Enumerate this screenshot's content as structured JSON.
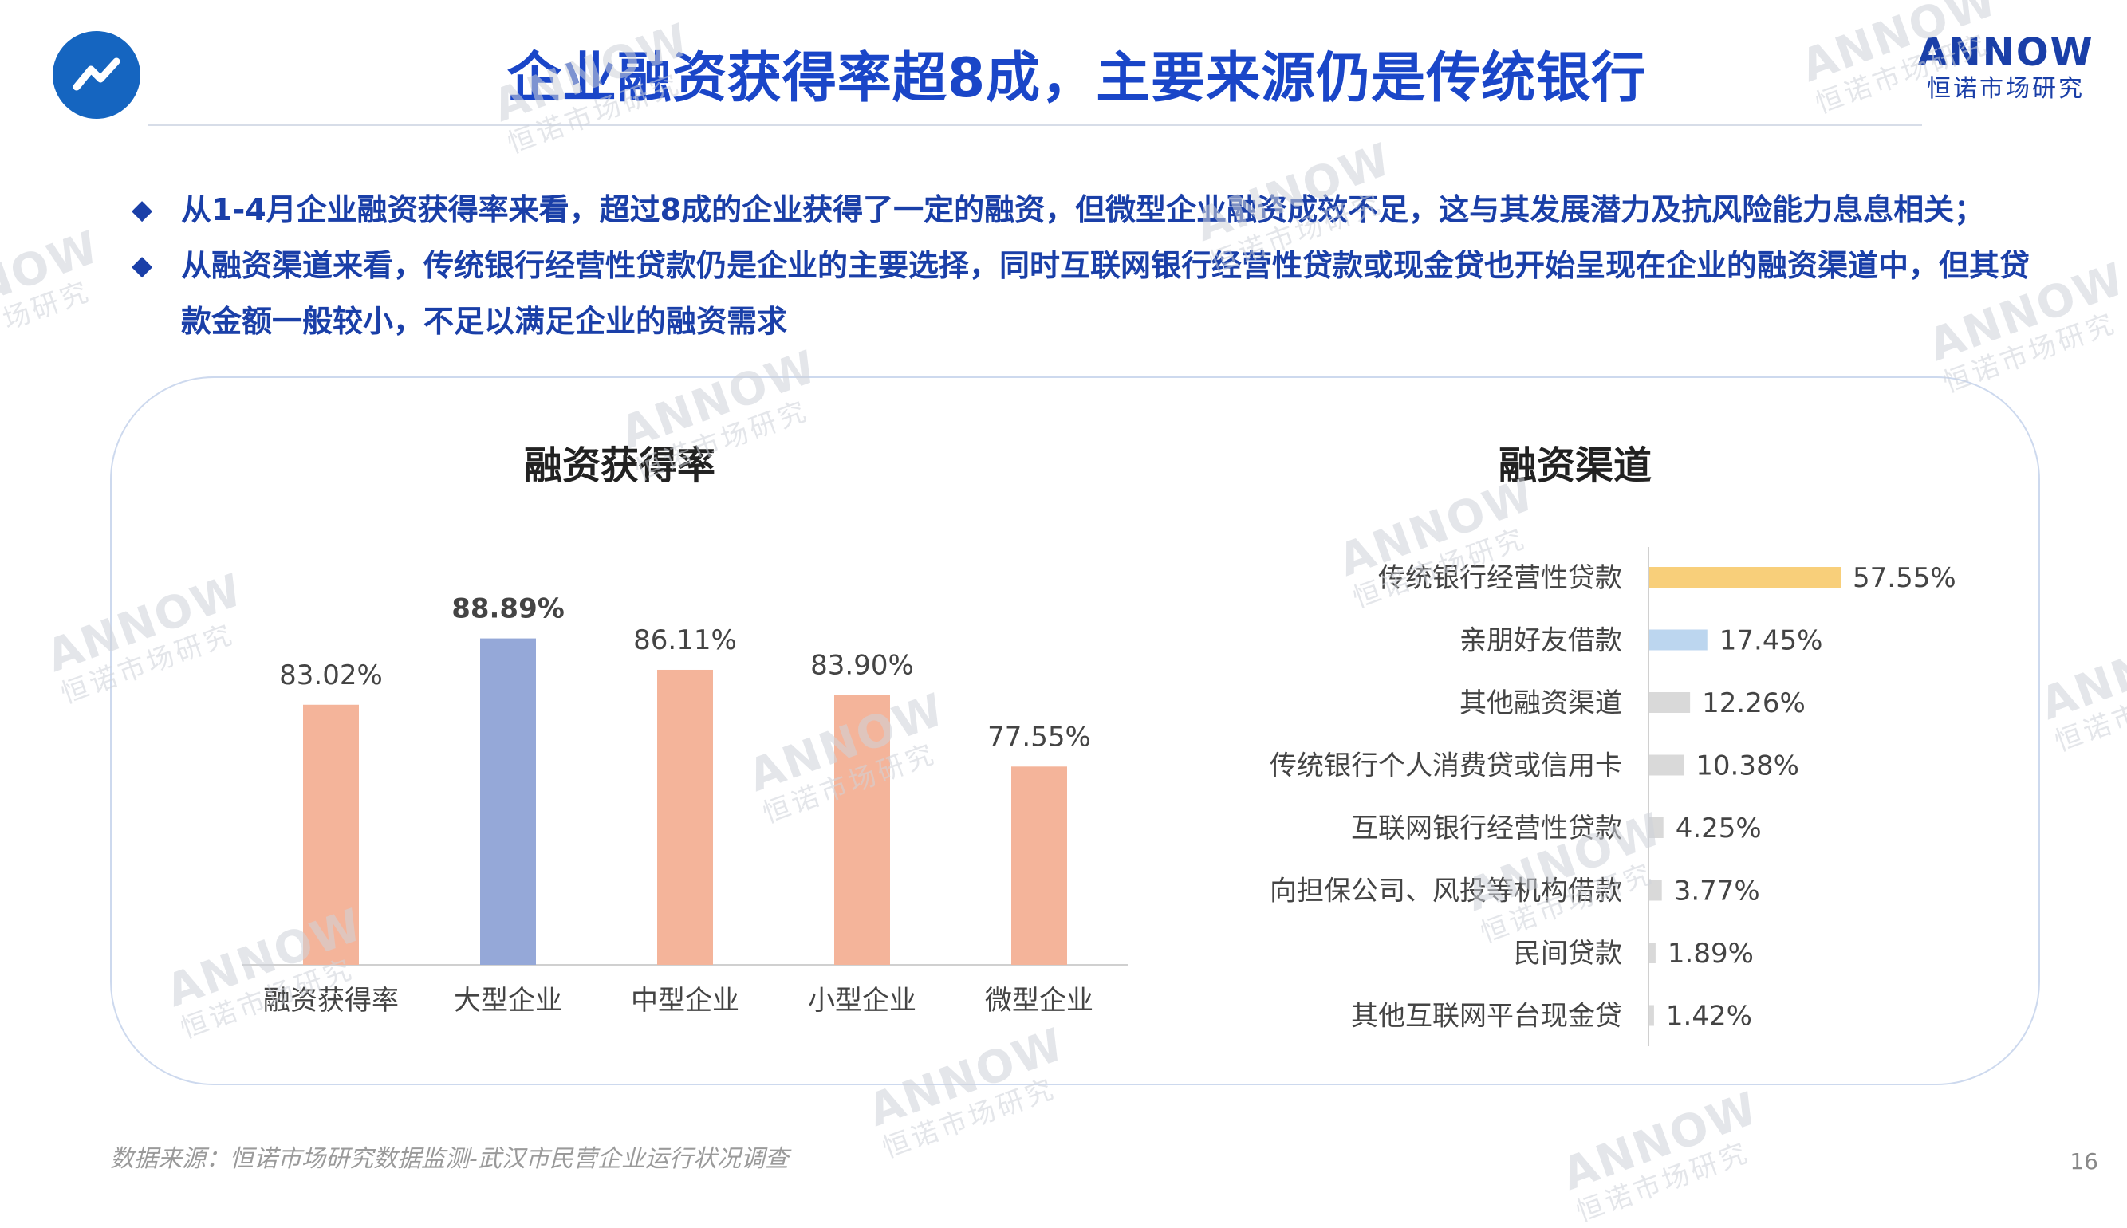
{
  "header": {
    "title": "企业融资获得率超8成，主要来源仍是传统银行",
    "brand_name": "ANNOW",
    "brand_sub": "恒诺市场研究",
    "logo_icon": "trend-line-icon"
  },
  "bullets": [
    {
      "text": "从1-4月企业融资获得率来看，超过8成的企业获得了一定的融资，但微型企业融资成效不足，这与其发展潜力及抗风险能力息息相关；"
    },
    {
      "text": "从融资渠道来看，传统银行经营性贷款仍是企业的主要选择，同时互联网银行经营性贷款或现金贷也开始呈现在企业的融资渠道中，但其贷款金额一般较小，不足以满足企业的融资需求"
    }
  ],
  "chart_data": [
    {
      "type": "bar",
      "title": "融资获得率",
      "categories": [
        "融资获得率",
        "大型企业",
        "中型企业",
        "小型企业",
        "微型企业"
      ],
      "values": [
        83.02,
        88.89,
        86.11,
        83.9,
        77.55
      ],
      "value_labels": [
        "83.02%",
        "88.89%",
        "86.11%",
        "83.90%",
        "77.55%"
      ],
      "highlight_index": 1,
      "ylim": [
        60,
        95
      ],
      "colors": {
        "default": "#f4b49a",
        "highlight": "#95a8d8"
      }
    },
    {
      "type": "bar",
      "orientation": "horizontal",
      "title": "融资渠道",
      "categories": [
        "传统银行经营性贷款",
        "亲朋好友借款",
        "其他融资渠道",
        "传统银行个人消费贷或信用卡",
        "互联网银行经营性贷款",
        "向担保公司、风投等机构借款",
        "民间贷款",
        "其他互联网平台现金贷"
      ],
      "values": [
        57.55,
        17.45,
        12.26,
        10.38,
        4.25,
        3.77,
        1.89,
        1.42
      ],
      "value_labels": [
        "57.55%",
        "17.45%",
        "12.26%",
        "10.38%",
        "4.25%",
        "3.77%",
        "1.89%",
        "1.42%"
      ],
      "xlim": [
        0,
        57.55
      ],
      "colors": [
        "#f8cf7a",
        "#bcd6ef",
        "#d9d9d9",
        "#d9d9d9",
        "#d9d9d9",
        "#d9d9d9",
        "#d9d9d9",
        "#d9d9d9"
      ]
    }
  ],
  "footer": {
    "source": "数据来源：恒诺市场研究数据监测-武汉市民营企业运行状况调查",
    "page": "16"
  },
  "watermark": {
    "line1": "ANNOW",
    "line2": "恒诺市场研究"
  }
}
